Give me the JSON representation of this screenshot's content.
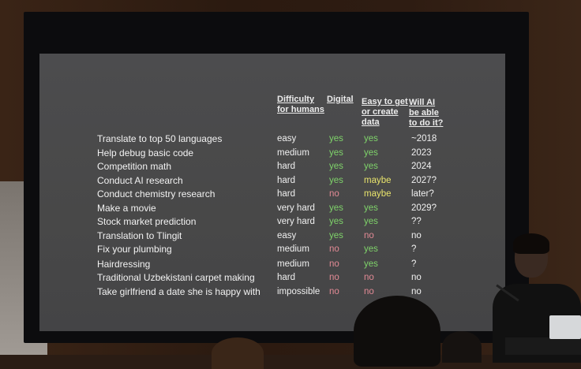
{
  "headers": {
    "difficulty": "Difficulty\nfor humans",
    "digital": "Digital",
    "easy": "Easy to get\nor create\ndata",
    "ai": "Will AI\nbe able\nto do it?"
  },
  "rows": [
    {
      "task": "Translate to top 50 languages",
      "difficulty": "easy",
      "digital": "yes",
      "easy": "yes",
      "ai": "~2018"
    },
    {
      "task": "Help debug basic code",
      "difficulty": "medium",
      "digital": "yes",
      "easy": "yes",
      "ai": "2023"
    },
    {
      "task": "Competition math",
      "difficulty": "hard",
      "digital": "yes",
      "easy": "yes",
      "ai": "2024"
    },
    {
      "task": "Conduct AI research",
      "difficulty": "hard",
      "digital": "yes",
      "easy": "maybe",
      "ai": "2027?"
    },
    {
      "task": "Conduct chemistry research",
      "difficulty": "hard",
      "digital": "no",
      "easy": "maybe",
      "ai": "later?"
    },
    {
      "task": "Make a movie",
      "difficulty": "very hard",
      "digital": "yes",
      "easy": "yes",
      "ai": "2029?"
    },
    {
      "task": "Stock market prediction",
      "difficulty": "very hard",
      "digital": "yes",
      "easy": "yes",
      "ai": "??"
    },
    {
      "task": "Translation to Tlingit",
      "difficulty": "easy",
      "digital": "yes",
      "easy": "no",
      "ai": "no"
    },
    {
      "task": "Fix your plumbing",
      "difficulty": "medium",
      "digital": "no",
      "easy": "yes",
      "ai": "?"
    },
    {
      "task": "Hairdressing",
      "difficulty": "medium",
      "digital": "no",
      "easy": "yes",
      "ai": "?"
    },
    {
      "task": "Traditional Uzbekistani carpet making",
      "difficulty": "hard",
      "digital": "no",
      "easy": "no",
      "ai": "no"
    },
    {
      "task": "Take girlfriend a date she is happy with",
      "difficulty": "impossible",
      "digital": "no",
      "easy": "no",
      "ai": "no"
    }
  ],
  "colors": {
    "yes": "#7fd36a",
    "no": "#e28a95",
    "maybe": "#e8e36c"
  }
}
